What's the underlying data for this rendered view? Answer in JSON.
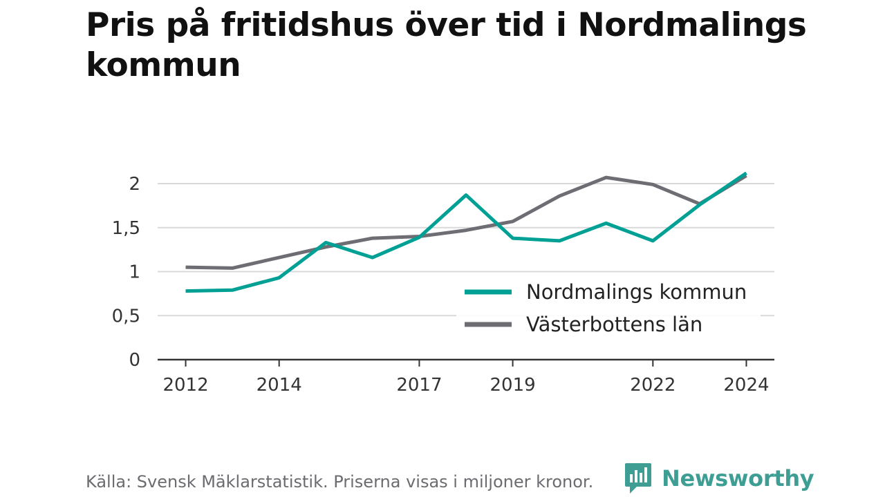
{
  "chart_data": {
    "type": "line",
    "title": "Pris på fritidshus över tid i Nordmalings kommun",
    "xlabel": "",
    "ylabel": "",
    "x": [
      2012,
      2013,
      2014,
      2015,
      2016,
      2017,
      2018,
      2019,
      2020,
      2021,
      2022,
      2023,
      2024
    ],
    "xticks": [
      "2012",
      "2014",
      "2017",
      "2019",
      "2022",
      "2024"
    ],
    "xtick_values": [
      2012,
      2014,
      2017,
      2019,
      2022,
      2024
    ],
    "xlim": [
      2011.4,
      2024.6
    ],
    "ylim": [
      0,
      2.2
    ],
    "yticks": [
      0,
      0.5,
      1,
      1.5,
      2
    ],
    "ytick_labels": [
      "0",
      "0,5",
      "1",
      "1,5",
      "2"
    ],
    "grid": "horizontal",
    "legend_position": "bottom-right",
    "series": [
      {
        "name": "Nordmalings kommun",
        "color": "#00a095",
        "values": [
          0.78,
          0.79,
          0.93,
          1.33,
          1.16,
          1.39,
          1.87,
          1.38,
          1.35,
          1.55,
          1.35,
          1.76,
          2.12
        ]
      },
      {
        "name": "Västerbottens län",
        "color": "#6e6d74",
        "values": [
          1.05,
          1.04,
          1.16,
          1.28,
          1.38,
          1.4,
          1.47,
          1.57,
          1.86,
          2.07,
          1.99,
          1.77,
          2.09
        ]
      }
    ]
  },
  "footer": {
    "source": "Källa: Svensk Mäklarstatistik. Priserna visas i miljoner kronor.",
    "brand": "Newsworthy",
    "brand_color": "#3e9e93"
  },
  "icons": {
    "brand": "newsworthy-logo-icon"
  }
}
